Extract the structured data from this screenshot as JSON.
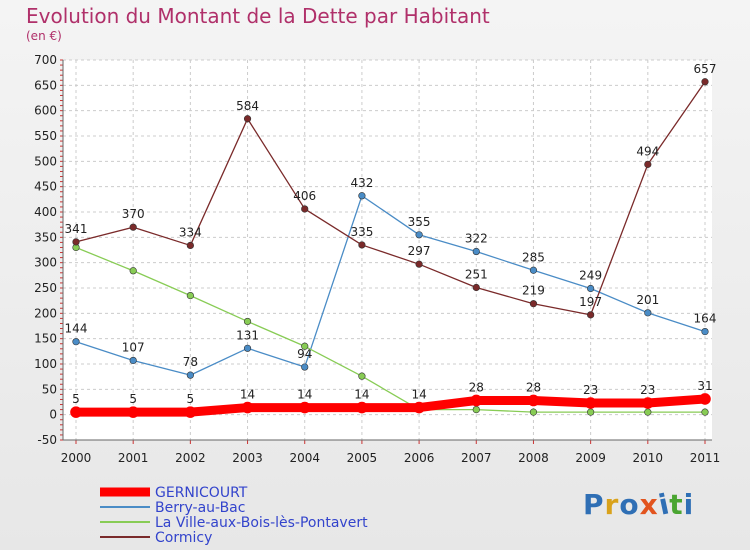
{
  "title": "Evolution du Montant de la Dette par Habitant",
  "subtitle": "(en €)",
  "logo": {
    "text": "Proxiti",
    "colors": [
      "#2f6fb5",
      "#d9a21b",
      "#2f6fb5",
      "#e2541e",
      "#2f6fb5",
      "#4aa531",
      "#2f6fb5"
    ]
  },
  "chart_data": {
    "type": "line",
    "x": [
      "2000",
      "2001",
      "2002",
      "2003",
      "2004",
      "2005",
      "2006",
      "2007",
      "2008",
      "2009",
      "2010",
      "2011"
    ],
    "ylim": [
      -50,
      700
    ],
    "yticks": [
      -50,
      0,
      50,
      100,
      150,
      200,
      250,
      300,
      350,
      400,
      450,
      500,
      550,
      600,
      650,
      700
    ],
    "grid": true,
    "legend_position": "bottom-left",
    "series": [
      {
        "name": "GERNICOURT",
        "color": "#ff0000",
        "values": [
          5,
          5,
          5,
          14,
          14,
          14,
          14,
          28,
          28,
          23,
          23,
          31
        ],
        "labels": true,
        "thick": true
      },
      {
        "name": "Berry-au-Bac",
        "color": "#4a8cc6",
        "values": [
          144,
          107,
          78,
          131,
          94,
          432,
          355,
          322,
          285,
          249,
          201,
          164
        ],
        "labels": true
      },
      {
        "name": "La Ville-aux-Bois-lès-Pontavert",
        "color": "#88cc55",
        "values": [
          330,
          284,
          235,
          184,
          135,
          76,
          10,
          10,
          5,
          5,
          5,
          5
        ],
        "labels": false
      },
      {
        "name": "Cormicy",
        "color": "#7a2a2a",
        "values": [
          341,
          370,
          334,
          584,
          406,
          335,
          297,
          251,
          219,
          197,
          494,
          657
        ],
        "labels": true
      }
    ]
  }
}
